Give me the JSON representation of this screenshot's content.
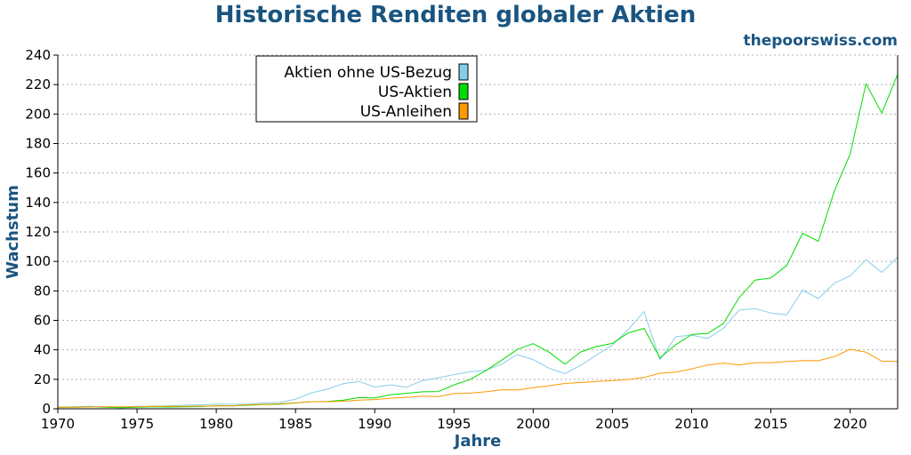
{
  "chart_data": {
    "type": "line",
    "title": "Historische Renditen globaler Aktien",
    "watermark": "thepoorswiss.com",
    "xlabel": "Jahre",
    "ylabel": "Wachstum",
    "xlim": [
      1970,
      2023
    ],
    "ylim": [
      0,
      240
    ],
    "xticks": [
      1970,
      1975,
      1980,
      1985,
      1990,
      1995,
      2000,
      2005,
      2010,
      2015,
      2020
    ],
    "yticks": [
      0,
      20,
      40,
      60,
      80,
      100,
      120,
      140,
      160,
      180,
      200,
      220,
      240
    ],
    "grid": "horizontal dotted",
    "legend_position": "top-center",
    "x": [
      1970,
      1971,
      1972,
      1973,
      1974,
      1975,
      1976,
      1977,
      1978,
      1979,
      1980,
      1981,
      1982,
      1983,
      1984,
      1985,
      1986,
      1987,
      1988,
      1989,
      1990,
      1991,
      1992,
      1993,
      1994,
      1995,
      1996,
      1997,
      1998,
      1999,
      2000,
      2001,
      2002,
      2003,
      2004,
      2005,
      2006,
      2007,
      2008,
      2009,
      2010,
      2011,
      2012,
      2013,
      2014,
      2015,
      2016,
      2017,
      2018,
      2019,
      2020,
      2021,
      2022,
      2023
    ],
    "series": [
      {
        "name": "Aktien ohne US-Bezug",
        "color": "#87ceeb",
        "values": [
          1,
          1.3,
          1.6,
          1.4,
          1.2,
          1.6,
          1.6,
          1.9,
          2.4,
          2.7,
          3.2,
          3.1,
          3.1,
          4,
          4.2,
          6.5,
          10.8,
          13.3,
          17,
          18.6,
          14.8,
          16.2,
          14.6,
          19.2,
          21,
          23.2,
          25.1,
          26.2,
          30.2,
          36.8,
          33.4,
          27.5,
          23.9,
          29.6,
          36.5,
          43.3,
          53.7,
          66,
          33.3,
          48.9,
          50,
          47.7,
          54.6,
          67,
          68,
          65,
          63.7,
          80.5,
          74.8,
          85.2,
          90.2,
          101.2,
          92.5,
          103
        ]
      },
      {
        "name": "US-Aktien",
        "color": "#00dd00",
        "values": [
          1,
          1.1,
          1.3,
          1.1,
          0.8,
          1.1,
          1.3,
          1.2,
          1.3,
          1.5,
          2.1,
          2,
          2.4,
          2.9,
          3.1,
          4,
          4.8,
          5,
          5.8,
          7.6,
          7.4,
          9.6,
          10.5,
          11.5,
          11.7,
          16.2,
          19.8,
          25.8,
          32.9,
          40.3,
          44.2,
          38.5,
          30.2,
          38.6,
          42.3,
          44.4,
          51.5,
          54.6,
          34.5,
          43.5,
          50.4,
          51.1,
          57.8,
          75.5,
          87.3,
          88.8,
          97.2,
          119.1,
          113.7,
          147.7,
          172.9,
          220.6,
          200.7,
          227
        ]
      },
      {
        "name": "US-Anleihen",
        "color": "#ff9900",
        "values": [
          1,
          1.1,
          1.2,
          1.3,
          1.3,
          1.4,
          1.6,
          1.7,
          1.7,
          1.8,
          1.9,
          2,
          2.7,
          3,
          3.4,
          4.1,
          4.8,
          4.8,
          5.1,
          5.9,
          6.3,
          7.2,
          7.8,
          8.6,
          8.3,
          10.3,
          10.6,
          11.5,
          12.9,
          12.7,
          14.3,
          15.6,
          17.2,
          17.8,
          18.5,
          19.1,
          19.9,
          21.3,
          24.1,
          24.9,
          27.1,
          29.7,
          31,
          29.8,
          31.3,
          31.3,
          32,
          32.7,
          32.6,
          35.4,
          40.4,
          38.5,
          32.3,
          32
        ]
      }
    ]
  }
}
